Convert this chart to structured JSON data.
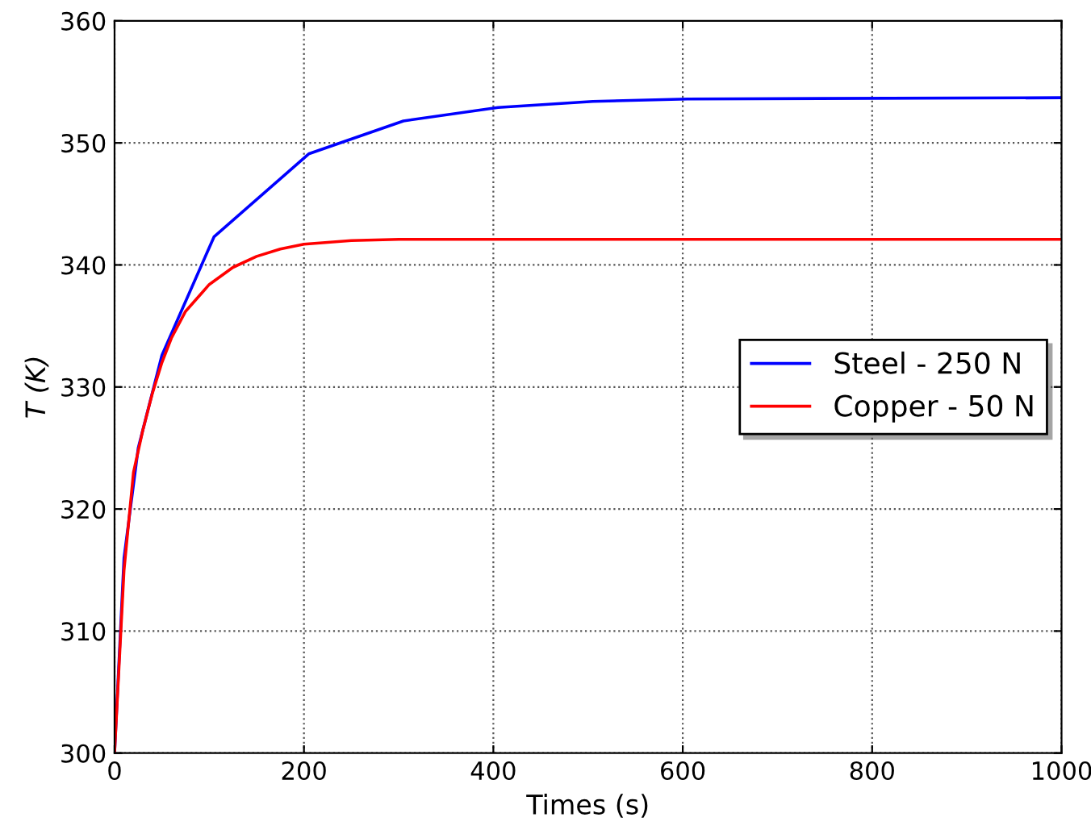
{
  "chart_data": {
    "type": "line",
    "xlabel": "Times (s)",
    "ylabel": "T (K)",
    "xlim": [
      0,
      1000
    ],
    "xticks": [
      0,
      200,
      400,
      600,
      800,
      1000
    ],
    "ylim": [
      300,
      360
    ],
    "yticks": [
      300,
      310,
      320,
      330,
      340,
      350,
      360
    ],
    "grid": true,
    "legend": "right",
    "line_style": "solid",
    "series": [
      {
        "name": "Steel - 250 N",
        "color": "#0000ff",
        "x": [
          0,
          10,
          25,
          50,
          105,
          205,
          305,
          405,
          505,
          605,
          1000
        ],
        "values": [
          300,
          316,
          325,
          332.6,
          342.3,
          349.1,
          351.8,
          352.9,
          353.4,
          353.6,
          353.7
        ]
      },
      {
        "name": "Copper - 50 N",
        "color": "#ff0000",
        "x": [
          0,
          10,
          20,
          30,
          40,
          50,
          60,
          75,
          100,
          125,
          150,
          175,
          200,
          250,
          300,
          400,
          1000
        ],
        "values": [
          300,
          315,
          323,
          326.5,
          329.5,
          332,
          334,
          336.2,
          338.4,
          339.8,
          340.7,
          341.3,
          341.7,
          342,
          342.1,
          342.1,
          342.1
        ]
      }
    ]
  }
}
